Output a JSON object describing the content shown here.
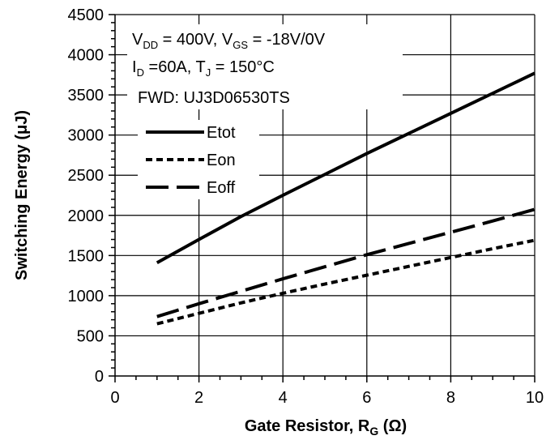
{
  "chart_data": {
    "type": "line",
    "xlabel_main": "Gate Resistor, R",
    "xlabel_sub": "G",
    "xlabel_tail": " (Ω)",
    "ylabel": "Switching Energy (μJ)",
    "xlim": [
      0,
      10
    ],
    "ylim": [
      0,
      4500
    ],
    "x_ticks": [
      0,
      2,
      4,
      6,
      8,
      10
    ],
    "y_ticks": [
      0,
      500,
      1000,
      1500,
      2000,
      2500,
      3000,
      3500,
      4000,
      4500
    ],
    "grid": true,
    "legend_position": "top-left",
    "annotation": {
      "line1": {
        "a": "V",
        "a_sub": "DD",
        "b": " = 400V, V",
        "b_sub": "GS",
        "c": " = -18V/0V"
      },
      "line2": {
        "a": "I",
        "a_sub": "D",
        "b": " =60A, T",
        "b_sub": "J",
        "c": " = 150°C"
      },
      "line3": "FWD: UJ3D06530TS"
    },
    "series": [
      {
        "name": "Etot",
        "style": "solid",
        "x": [
          1,
          2,
          3,
          4,
          5,
          6,
          7,
          8,
          9,
          10
        ],
        "y": [
          1410,
          1700,
          1985,
          2250,
          2510,
          2770,
          3020,
          3270,
          3520,
          3770
        ]
      },
      {
        "name": "Eon",
        "style": "short-dash",
        "x": [
          1,
          2,
          3,
          4,
          5,
          6,
          7,
          8,
          9,
          10
        ],
        "y": [
          650,
          780,
          910,
          1030,
          1145,
          1255,
          1365,
          1475,
          1585,
          1690
        ]
      },
      {
        "name": "Eoff",
        "style": "long-dash",
        "x": [
          1,
          2,
          3,
          4,
          5,
          6,
          7,
          8,
          9,
          10
        ],
        "y": [
          740,
          900,
          1055,
          1210,
          1360,
          1510,
          1650,
          1790,
          1930,
          2075
        ]
      }
    ]
  }
}
